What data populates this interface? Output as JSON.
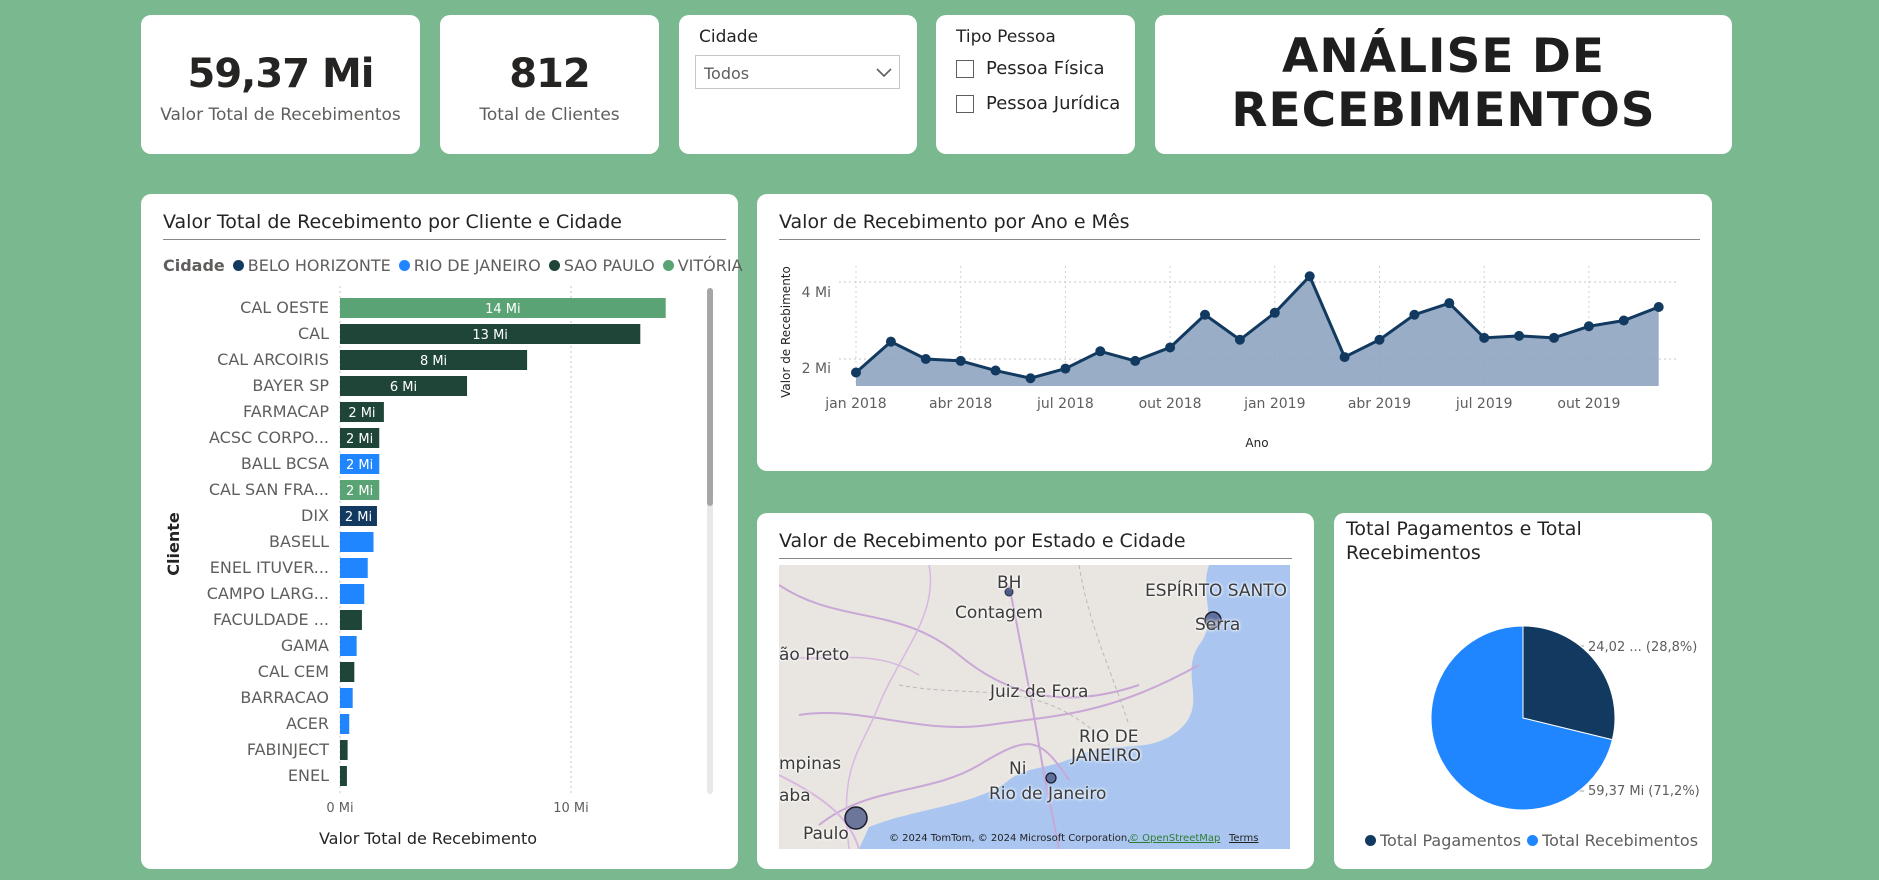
{
  "kpis": [
    {
      "value": "59,37 Mi",
      "label": "Valor Total de Recebimentos"
    },
    {
      "value": "812",
      "label": "Total de Clientes"
    }
  ],
  "slicer_cidade": {
    "title": "Cidade",
    "selected": "Todos",
    "icon": "chevron-down-icon"
  },
  "slicer_tipo": {
    "title": "Tipo Pessoa",
    "options": [
      "Pessoa Física",
      "Pessoa Jurídica"
    ]
  },
  "page_title": {
    "line1": "ANÁLISE DE",
    "line2": "RECEBIMENTOS"
  },
  "colors": {
    "background": "#7ab88f",
    "belo_horizonte": "#12395f",
    "rio_de_janeiro": "#1f86ff",
    "sao_paulo": "#1e4538",
    "vitoria": "#5aa374",
    "line": "#12395f",
    "area": "#8fa4c0"
  },
  "bar_chart": {
    "title": "Valor Total de Recebimento por Cliente e Cidade",
    "legend_title": "Cidade",
    "legend": [
      {
        "name": "BELO HORIZONTE",
        "color": "#12395f"
      },
      {
        "name": "RIO DE JANEIRO",
        "color": "#1f86ff"
      },
      {
        "name": "SAO PAULO",
        "color": "#1e4538"
      },
      {
        "name": "VITÓRIA",
        "color": "#5aa374"
      }
    ],
    "ylabel": "Cliente",
    "xlabel": "Valor Total de Recebimento",
    "x_ticks": [
      "0 Mi",
      "10 Mi"
    ]
  },
  "line_chart": {
    "title": "Valor de Recebimento por Ano e Mês",
    "ylabel": "Valor de Recebimento",
    "xlabel": "Ano",
    "y_ticks": [
      "2 Mi",
      "4 Mi"
    ],
    "x_ticks": [
      "jan 2018",
      "abr 2018",
      "jul 2018",
      "out 2018",
      "jan 2019",
      "abr 2019",
      "jul 2019",
      "out 2019"
    ]
  },
  "map": {
    "title": "Valor de Recebimento por Estado e Cidade",
    "labels": [
      "BH",
      "Contagem",
      "ESPÍRITO SANTO",
      "Serra",
      "ão Preto",
      "Juiz de Fora",
      "RIO DE",
      "JANEIRO",
      "Ni",
      "Rio de Janeiro",
      "mpinas",
      "aba",
      "Paulo"
    ],
    "attribution": "© 2024 TomTom, © 2024 Microsoft Corporation,",
    "attribution_link": "© OpenStreetMap",
    "terms": "Terms"
  },
  "pie_chart": {
    "title_line1": "Total Pagamentos e Total",
    "title_line2": "Recebimentos",
    "label_pagamentos": "24,02 ... (28,8%)",
    "label_recebimentos": "59,37 Mi (71,2%)",
    "legend": [
      {
        "name": "Total Pagamentos",
        "color": "#12395f"
      },
      {
        "name": "Total Recebimentos",
        "color": "#1f86ff"
      }
    ]
  },
  "chart_data": [
    {
      "type": "bar",
      "orientation": "horizontal",
      "title": "Valor Total de Recebimento por Cliente e Cidade",
      "xlabel": "Valor Total de Recebimento",
      "ylabel": "Cliente",
      "xlim": [
        0,
        14.8
      ],
      "grid": true,
      "legend_position": "top",
      "categories": [
        "CAL OESTE",
        "CAL",
        "CAL ARCOIRIS",
        "BAYER SP",
        "FARMACAP",
        "ACSC CORPO...",
        "BALL BCSA",
        "CAL SAN FRA...",
        "DIX",
        "BASELL",
        "ENEL ITUVER...",
        "CAMPO LARG...",
        "FACULDADE ...",
        "GAMA",
        "CAL CEM",
        "BARRACAO",
        "ACER",
        "FABINJECT",
        "ENEL"
      ],
      "values": [
        14.1,
        13.0,
        8.1,
        5.5,
        1.9,
        1.7,
        1.7,
        1.7,
        1.6,
        1.45,
        1.2,
        1.05,
        0.95,
        0.72,
        0.62,
        0.55,
        0.4,
        0.33,
        0.3
      ],
      "data_labels": [
        "14 Mi",
        "13 Mi",
        "8 Mi",
        "6 Mi",
        "2 Mi",
        "2 Mi",
        "2 Mi",
        "2 Mi",
        "2 Mi",
        "",
        "",
        "",
        "",
        "",
        "",
        "",
        "",
        "",
        ""
      ],
      "city": [
        "VITÓRIA",
        "SAO PAULO",
        "SAO PAULO",
        "SAO PAULO",
        "SAO PAULO",
        "SAO PAULO",
        "RIO DE JANEIRO",
        "VITÓRIA",
        "BELO HORIZONTE",
        "RIO DE JANEIRO",
        "RIO DE JANEIRO",
        "RIO DE JANEIRO",
        "SAO PAULO",
        "RIO DE JANEIRO",
        "SAO PAULO",
        "RIO DE JANEIRO",
        "RIO DE JANEIRO",
        "SAO PAULO",
        "SAO PAULO"
      ]
    },
    {
      "type": "area",
      "title": "Valor de Recebimento por Ano e Mês",
      "xlabel": "Ano",
      "ylabel": "Valor de Recebimento",
      "ylim": [
        1.0,
        4.9
      ],
      "grid": true,
      "x": [
        "jan 2018",
        "fev 2018",
        "mar 2018",
        "abr 2018",
        "mai 2018",
        "jun 2018",
        "jul 2018",
        "ago 2018",
        "set 2018",
        "out 2018",
        "nov 2018",
        "dez 2018",
        "jan 2019",
        "fev 2019",
        "mar 2019",
        "abr 2019",
        "mai 2019",
        "jun 2019",
        "jul 2019",
        "ago 2019",
        "set 2019",
        "out 2019",
        "nov 2019",
        "dez 2019"
      ],
      "values": [
        1.65,
        2.45,
        2.0,
        1.95,
        1.7,
        1.5,
        1.75,
        2.2,
        1.95,
        2.3,
        3.15,
        2.5,
        3.2,
        4.15,
        2.05,
        2.5,
        3.15,
        3.45,
        2.55,
        2.6,
        2.55,
        2.85,
        3.0,
        3.35
      ]
    },
    {
      "type": "pie",
      "title": "Total Pagamentos e Total Recebimentos",
      "labels": [
        "Total Pagamentos",
        "Total Recebimentos"
      ],
      "values": [
        24.02,
        59.37
      ],
      "percent": [
        28.8,
        71.2
      ],
      "legend_position": "bottom"
    }
  ]
}
